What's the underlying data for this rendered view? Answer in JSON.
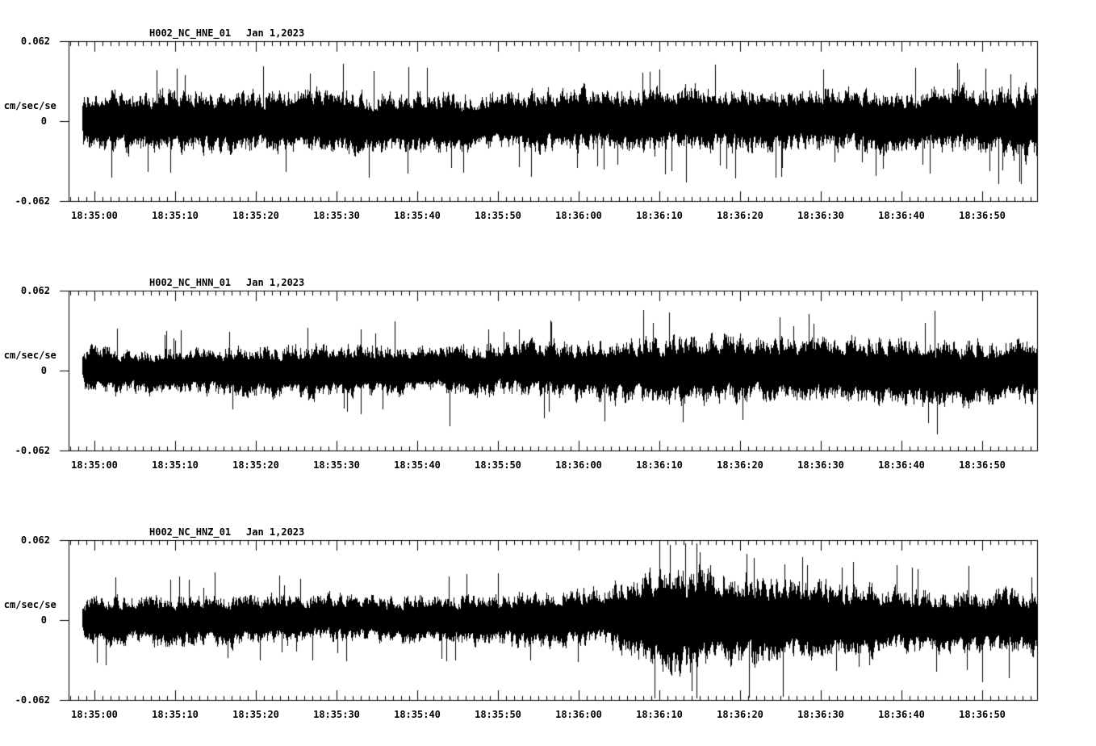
{
  "figure": {
    "background": "#ffffff",
    "axis_color": "#000000",
    "trace_color": "#000000"
  },
  "chart_data": [
    {
      "type": "line",
      "panel": "top",
      "title": "H002_NC_HNE_01",
      "date_label": "Jan 1,2023",
      "ylabel": "cm/sec/sec",
      "ylim": [
        -0.062,
        0.062
      ],
      "ytick_labels": {
        "max": "0.062",
        "zero": "0",
        "min": "-0.062"
      },
      "xtick_labels": [
        "18:35:00",
        "18:35:10",
        "18:35:20",
        "18:35:30",
        "18:35:40",
        "18:35:50",
        "18:36:00",
        "18:36:10",
        "18:36:20",
        "18:36:30",
        "18:36:40",
        "18:36:50"
      ],
      "x_window": {
        "start": "18:34:57",
        "end": "18:36:57",
        "major_tick_sec": 10,
        "minor_tick_sec": 1
      },
      "signal_description": "continuous broadband seismic noise, roughly stationary, slightly larger in final 15 s",
      "envelope": {
        "t_sec_after_18_35_00": [
          -3,
          0,
          10,
          20,
          30,
          40,
          50,
          60,
          70,
          80,
          90,
          100,
          110,
          117
        ],
        "amp_cm_s2": [
          0.029,
          0.03,
          0.031,
          0.03,
          0.031,
          0.03,
          0.029,
          0.03,
          0.033,
          0.031,
          0.03,
          0.029,
          0.032,
          0.036
        ]
      },
      "notable_peaks": [
        {
          "t_sec_after_18_35_00": 34,
          "amp_cm_s2": -0.044
        },
        {
          "t_sec_after_18_35_00": 70,
          "amp_cm_s2": 0.04
        },
        {
          "t_sec_after_18_35_00": 112,
          "amp_cm_s2": -0.049
        }
      ]
    },
    {
      "type": "line",
      "panel": "middle",
      "title": "H002_NC_HNN_01",
      "date_label": "Jan 1,2023",
      "ylabel": "cm/sec/sec",
      "ylim": [
        -0.062,
        0.062
      ],
      "ytick_labels": {
        "max": "0.062",
        "zero": "0",
        "min": "-0.062"
      },
      "xtick_labels": [
        "18:35:00",
        "18:35:10",
        "18:35:20",
        "18:35:30",
        "18:35:40",
        "18:35:50",
        "18:36:00",
        "18:36:10",
        "18:36:20",
        "18:36:30",
        "18:36:40",
        "18:36:50"
      ],
      "x_window": {
        "start": "18:34:57",
        "end": "18:36:57",
        "major_tick_sec": 10,
        "minor_tick_sec": 1
      },
      "signal_description": "seismic noise growing gradually from ~0.02 to ~0.033 cm/sec/sec after 18:36:05",
      "envelope": {
        "t_sec_after_18_35_00": [
          -3,
          0,
          10,
          20,
          30,
          40,
          50,
          60,
          70,
          80,
          90,
          100,
          110,
          117
        ],
        "amp_cm_s2": [
          0.02,
          0.022,
          0.023,
          0.026,
          0.027,
          0.025,
          0.026,
          0.029,
          0.033,
          0.032,
          0.031,
          0.034,
          0.032,
          0.031
        ]
      },
      "notable_peaks": [
        {
          "t_sec_after_18_35_00": 44,
          "amp_cm_s2": -0.043
        },
        {
          "t_sec_after_18_35_00": 68,
          "amp_cm_s2": 0.047
        }
      ]
    },
    {
      "type": "line",
      "panel": "bottom",
      "title": "H002_NC_HNZ_01",
      "date_label": "Jan 1,2023",
      "ylabel": "cm/sec/sec",
      "ylim": [
        -0.062,
        0.062
      ],
      "ytick_labels": {
        "max": "0.062",
        "zero": "0",
        "min": "-0.062"
      },
      "xtick_labels": [
        "18:35:00",
        "18:35:10",
        "18:35:20",
        "18:35:30",
        "18:35:40",
        "18:35:50",
        "18:36:00",
        "18:36:10",
        "18:36:20",
        "18:36:30",
        "18:36:40",
        "18:36:50"
      ],
      "x_window": {
        "start": "18:34:57",
        "end": "18:36:57",
        "major_tick_sec": 10,
        "minor_tick_sec": 1
      },
      "signal_description": "seismic noise with a burst starting ~18:36:03, peaking ~18:36:10 near +0.06, decaying by ~18:36:30",
      "envelope": {
        "t_sec_after_18_35_00": [
          -3,
          0,
          10,
          20,
          30,
          40,
          50,
          60,
          64,
          70,
          75,
          80,
          90,
          100,
          110,
          117
        ],
        "amp_cm_s2": [
          0.023,
          0.024,
          0.025,
          0.024,
          0.023,
          0.024,
          0.026,
          0.027,
          0.03,
          0.056,
          0.05,
          0.046,
          0.037,
          0.031,
          0.03,
          0.032
        ]
      },
      "notable_peaks": [
        {
          "t_sec_after_18_35_00": 70,
          "amp_cm_s2": 0.06
        },
        {
          "t_sec_after_18_35_00": 74,
          "amp_cm_s2": -0.055
        },
        {
          "t_sec_after_18_35_00": 110,
          "amp_cm_s2": -0.048
        }
      ]
    }
  ]
}
